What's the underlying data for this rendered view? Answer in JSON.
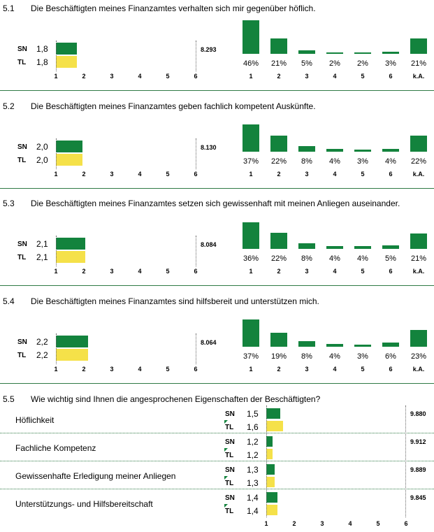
{
  "colors": {
    "sn": "#13833d",
    "tl": "#f5e149",
    "separator": "#2f7a45"
  },
  "scale_ticks": [
    "1",
    "2",
    "3",
    "4",
    "5",
    "6"
  ],
  "dist_categories": [
    "1",
    "2",
    "3",
    "4",
    "5",
    "6",
    "k.A."
  ],
  "labels": {
    "sn": "SN",
    "tl": "TL"
  },
  "sections": [
    {
      "num": "5.1",
      "title": "Die Beschäftigten meines Finanzamtes verhalten sich mir gegenüber höflich.",
      "sn": "1,8",
      "tl": "1,8",
      "n": "8.293",
      "pct": [
        "46%",
        "21%",
        "5%",
        "2%",
        "2%",
        "3%",
        "21%"
      ]
    },
    {
      "num": "5.2",
      "title": "Die Beschäftigten meines Finanzamtes geben fachlich kompetent Auskünfte.",
      "sn": "2,0",
      "tl": "2,0",
      "n": "8.130",
      "pct": [
        "37%",
        "22%",
        "8%",
        "4%",
        "3%",
        "4%",
        "22%"
      ]
    },
    {
      "num": "5.3",
      "title": "Die Beschäftigten meines Finanzamtes setzen sich gewissenhaft mit meinen Anliegen auseinander.",
      "sn": "2,1",
      "tl": "2,1",
      "n": "8.084",
      "pct": [
        "36%",
        "22%",
        "8%",
        "4%",
        "4%",
        "5%",
        "21%"
      ]
    },
    {
      "num": "5.4",
      "title": "Die Beschäftigten meines Finanzamtes sind hilfsbereit und unterstützen mich.",
      "sn": "2,2",
      "tl": "2,2",
      "n": "8.064",
      "pct": [
        "37%",
        "19%",
        "8%",
        "4%",
        "3%",
        "6%",
        "23%"
      ]
    }
  ],
  "importance": {
    "num": "5.5",
    "title": "Wie wichtig sind Ihnen die angesprochenen Eigenschaften der Beschäftigten?",
    "rows": [
      {
        "label": "Höflichkeit",
        "sn": "1,5",
        "tl": "1,6",
        "n": "9.880"
      },
      {
        "label": "Fachliche Kompetenz",
        "sn": "1,2",
        "tl": "1,2",
        "n": "9.912"
      },
      {
        "label": "Gewissenhafte Erledigung meiner Anliegen",
        "sn": "1,3",
        "tl": "1,3",
        "n": "9.889"
      },
      {
        "label": "Unterstützungs- und Hilfsbereitschaft",
        "sn": "1,4",
        "tl": "1,4",
        "n": "9.845"
      }
    ]
  },
  "chart_data": [
    {
      "type": "bar",
      "title": "Die Beschäftigten meines Finanzamtes verhalten sich mir gegenüber höflich.",
      "categories": [
        "SN",
        "TL"
      ],
      "values": [
        1.8,
        1.8
      ],
      "xlim": [
        1,
        6
      ],
      "n": 8293,
      "distribution": {
        "categories": [
          "1",
          "2",
          "3",
          "4",
          "5",
          "6",
          "k.A."
        ],
        "values": [
          46,
          21,
          5,
          2,
          2,
          3,
          21
        ]
      }
    },
    {
      "type": "bar",
      "title": "Die Beschäftigten meines Finanzamtes geben fachlich kompetent Auskünfte.",
      "categories": [
        "SN",
        "TL"
      ],
      "values": [
        2.0,
        2.0
      ],
      "xlim": [
        1,
        6
      ],
      "n": 8130,
      "distribution": {
        "categories": [
          "1",
          "2",
          "3",
          "4",
          "5",
          "6",
          "k.A."
        ],
        "values": [
          37,
          22,
          8,
          4,
          3,
          4,
          22
        ]
      }
    },
    {
      "type": "bar",
      "title": "Die Beschäftigten meines Finanzamtes setzen sich gewissenhaft mit meinen Anliegen auseinander.",
      "categories": [
        "SN",
        "TL"
      ],
      "values": [
        2.1,
        2.1
      ],
      "xlim": [
        1,
        6
      ],
      "n": 8084,
      "distribution": {
        "categories": [
          "1",
          "2",
          "3",
          "4",
          "5",
          "6",
          "k.A."
        ],
        "values": [
          36,
          22,
          8,
          4,
          4,
          5,
          21
        ]
      }
    },
    {
      "type": "bar",
      "title": "Die Beschäftigten meines Finanzamtes sind hilfsbereit und unterstützen mich.",
      "categories": [
        "SN",
        "TL"
      ],
      "values": [
        2.2,
        2.2
      ],
      "xlim": [
        1,
        6
      ],
      "n": 8064,
      "distribution": {
        "categories": [
          "1",
          "2",
          "3",
          "4",
          "5",
          "6",
          "k.A."
        ],
        "values": [
          37,
          19,
          8,
          4,
          3,
          6,
          23
        ]
      }
    },
    {
      "type": "bar",
      "title": "Wie wichtig sind Ihnen die angesprochenen Eigenschaften der Beschäftigten?",
      "categories": [
        "Höflichkeit",
        "Fachliche Kompetenz",
        "Gewissenhafte Erledigung meiner Anliegen",
        "Unterstützungs- und Hilfsbereitschaft"
      ],
      "series": [
        {
          "name": "SN",
          "values": [
            1.5,
            1.2,
            1.3,
            1.4
          ]
        },
        {
          "name": "TL",
          "values": [
            1.6,
            1.2,
            1.3,
            1.4
          ]
        }
      ],
      "xlim": [
        1,
        6
      ],
      "n": [
        9880,
        9912,
        9889,
        9845
      ]
    }
  ]
}
